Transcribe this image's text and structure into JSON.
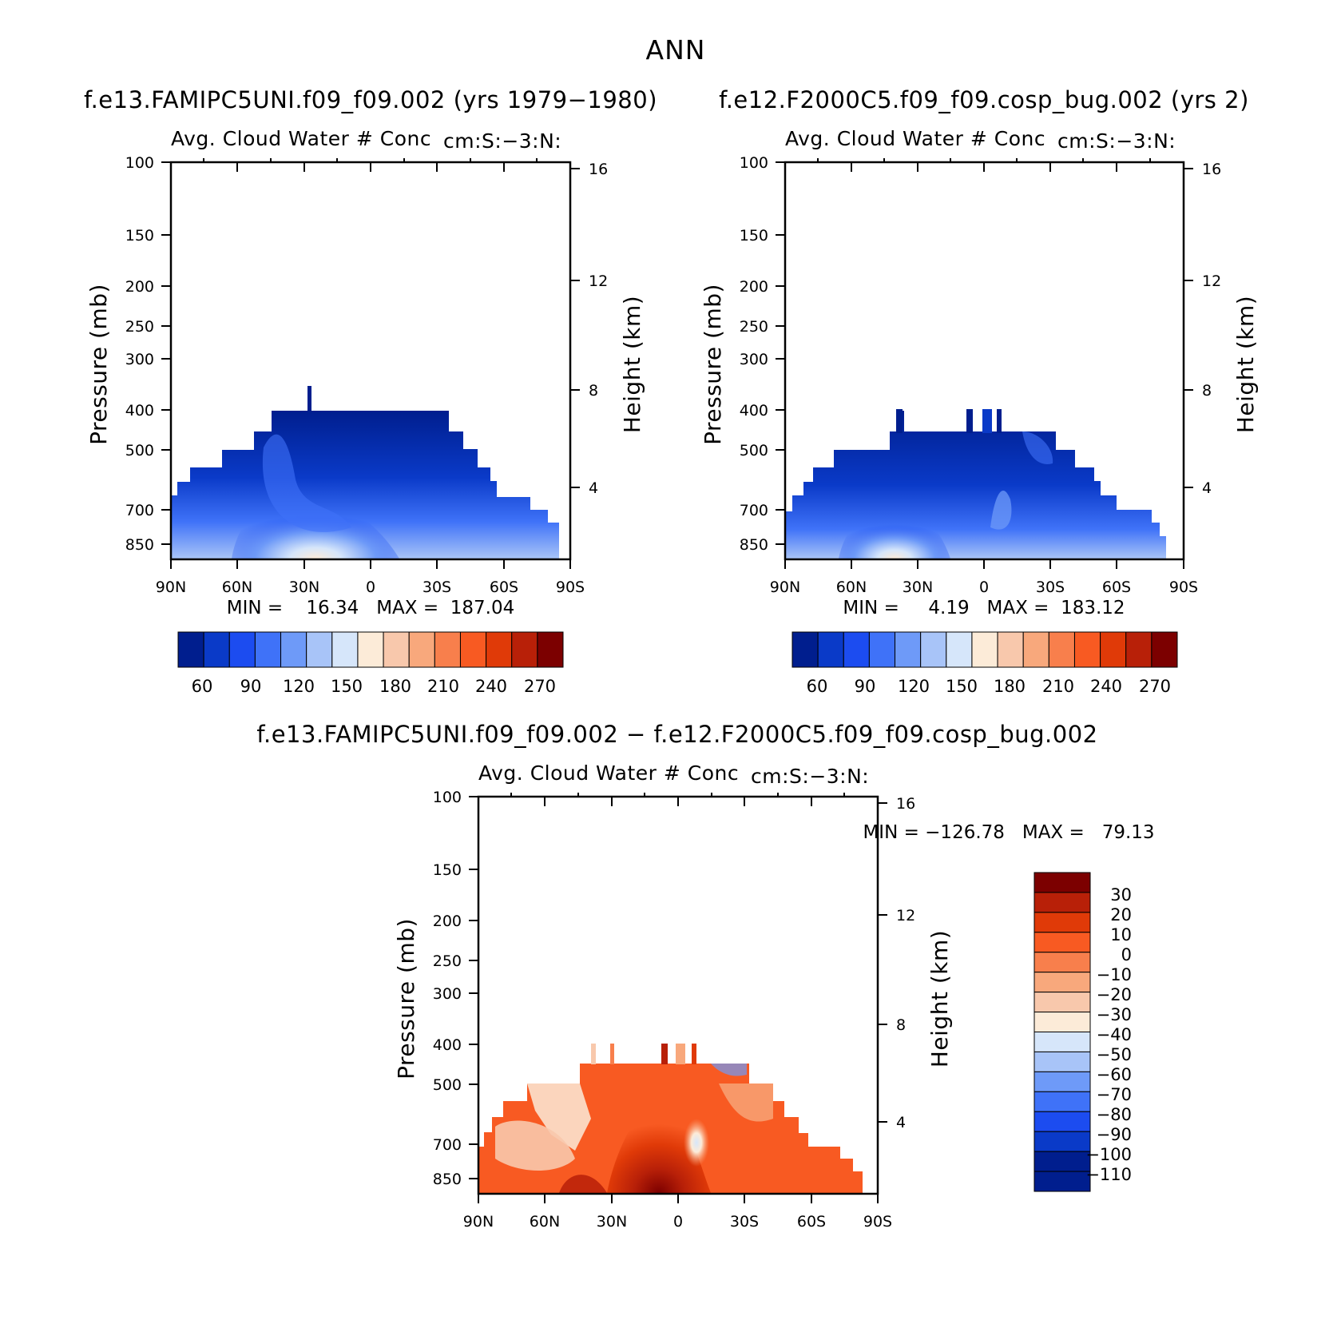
{
  "figure": {
    "title": "ANN"
  },
  "panels": [
    {
      "id": "p1",
      "case_title": "f.e13.FAMIPC5UNI.f09_f09.002 (yrs 1979−1980)",
      "plot_title": "Avg. Cloud Water # Conc",
      "plot_units": "cm:S:−3:N:",
      "min_max_text": "MIN =    16.34   MAX =  187.04"
    },
    {
      "id": "p2",
      "case_title": "f.e12.F2000C5.f09_f09.cosp_bug.002 (yrs 2)",
      "plot_title": "Avg. Cloud Water # Conc",
      "plot_units": "cm:S:−3:N:",
      "min_max_text": "MIN =     4.19   MAX =  183.12"
    },
    {
      "id": "p3",
      "case_title": "f.e13.FAMIPC5UNI.f09_f09.002 − f.e12.F2000C5.f09_f09.cosp_bug.002",
      "plot_title": "Avg. Cloud Water # Conc",
      "plot_units": "cm:S:−3:N:",
      "min_max_text": "MIN = −126.78   MAX =   79.13"
    }
  ],
  "chart_data": [
    {
      "type": "heatmap",
      "title": "Avg. Cloud Water # Conc",
      "units": "cm:S:−3:N:",
      "ylabel": "Pressure (mb)",
      "y2label": "Height (km)",
      "x_tick_labels": [
        "90N",
        "60N",
        "30N",
        "0",
        "30S",
        "60S",
        "90S"
      ],
      "y_tick_labels": [
        "100",
        "150",
        "200",
        "250",
        "300",
        "400",
        "500",
        "700",
        "850"
      ],
      "y2_tick_labels": [
        "16",
        "12",
        "8",
        "4"
      ],
      "ylim": [
        100,
        1000
      ],
      "y_scale": "log",
      "colorbar": {
        "orientation": "horizontal",
        "labels": [
          "60",
          "90",
          "120",
          "150",
          "180",
          "210",
          "240",
          "270"
        ],
        "colors": [
          "#001e8e",
          "#0a3ac8",
          "#1c4cf0",
          "#3f72f8",
          "#6e9af8",
          "#a8c4f8",
          "#d6e6fa",
          "#fcebd8",
          "#f8c8ac",
          "#f8a87c",
          "#f87f4c",
          "#f85a22",
          "#e03a08",
          "#b82008",
          "#7c0000"
        ]
      },
      "min": 16.34,
      "max": 187.04
    },
    {
      "type": "heatmap",
      "title": "Avg. Cloud Water # Conc",
      "units": "cm:S:−3:N:",
      "ylabel": "Pressure (mb)",
      "y2label": "Height (km)",
      "x_tick_labels": [
        "90N",
        "60N",
        "30N",
        "0",
        "30S",
        "60S",
        "90S"
      ],
      "y_tick_labels": [
        "100",
        "150",
        "200",
        "250",
        "300",
        "400",
        "500",
        "700",
        "850"
      ],
      "y2_tick_labels": [
        "16",
        "12",
        "8",
        "4"
      ],
      "ylim": [
        100,
        1000
      ],
      "y_scale": "log",
      "colorbar": {
        "orientation": "horizontal",
        "labels": [
          "60",
          "90",
          "120",
          "150",
          "180",
          "210",
          "240",
          "270"
        ],
        "colors": [
          "#001e8e",
          "#0a3ac8",
          "#1c4cf0",
          "#3f72f8",
          "#6e9af8",
          "#a8c4f8",
          "#d6e6fa",
          "#fcebd8",
          "#f8c8ac",
          "#f8a87c",
          "#f87f4c",
          "#f85a22",
          "#e03a08",
          "#b82008",
          "#7c0000"
        ]
      },
      "min": 4.19,
      "max": 183.12
    },
    {
      "type": "heatmap",
      "title": "Avg. Cloud Water # Conc",
      "units": "cm:S:−3:N:",
      "ylabel": "Pressure (mb)",
      "y2label": "Height (km)",
      "x_tick_labels": [
        "90N",
        "60N",
        "30N",
        "0",
        "30S",
        "60S",
        "90S"
      ],
      "y_tick_labels": [
        "100",
        "150",
        "200",
        "250",
        "300",
        "400",
        "500",
        "700",
        "850"
      ],
      "y2_tick_labels": [
        "16",
        "12",
        "8",
        "4"
      ],
      "ylim": [
        100,
        1000
      ],
      "y_scale": "log",
      "colorbar": {
        "orientation": "vertical",
        "labels": [
          "30",
          "20",
          "10",
          "0",
          "−10",
          "−20",
          "−30",
          "−40",
          "−50",
          "−60",
          "−70",
          "−80",
          "−90",
          "−100",
          "−110"
        ],
        "colors": [
          "#7c0000",
          "#b82008",
          "#e03a08",
          "#f85a22",
          "#f87f4c",
          "#f8a87c",
          "#f8c8ac",
          "#fcebd8",
          "#d6e6fa",
          "#a8c4f8",
          "#6e9af8",
          "#3f72f8",
          "#1c4cf0",
          "#0a3ac8",
          "#001e8e",
          "#001e8e"
        ]
      },
      "min": -126.78,
      "max": 79.13
    }
  ]
}
